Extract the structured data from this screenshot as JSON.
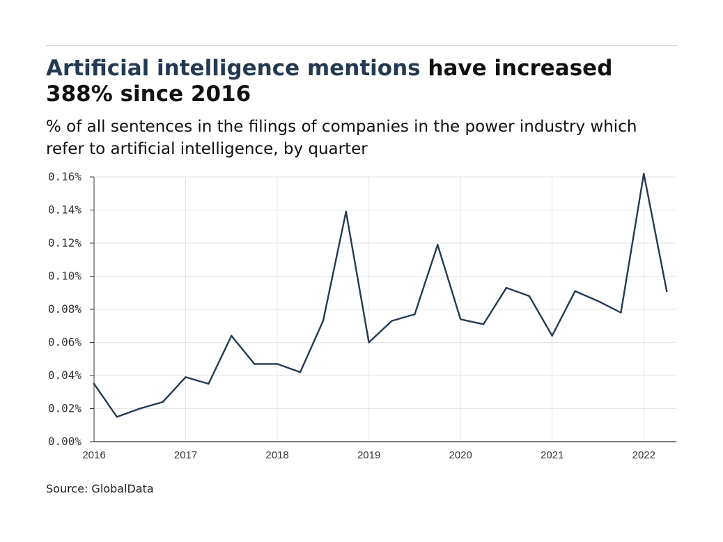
{
  "header": {
    "title_accent": "Artificial intelligence mentions",
    "title_rest": " have increased 388% since 2016",
    "subtitle": "% of all sentences in the filings of companies in the power industry which refer to artificial intelligence, by quarter"
  },
  "footer": {
    "source": "Source: GlobalData"
  },
  "colors": {
    "line": "#243a52",
    "grid": "#e6e6e6",
    "axis": "#333333",
    "title_accent": "#243a52"
  },
  "chart_data": {
    "type": "line",
    "title": "Artificial intelligence mentions have increased 388% since 2016",
    "subtitle": "% of all sentences in the filings of companies in the power industry which refer to artificial intelligence, by quarter",
    "xlabel": "",
    "ylabel": "",
    "x_ticks": [
      "2016",
      "2017",
      "2018",
      "2019",
      "2020",
      "2021",
      "2022"
    ],
    "y_ticks": [
      "0.00%",
      "0.02%",
      "0.04%",
      "0.06%",
      "0.08%",
      "0.10%",
      "0.12%",
      "0.14%",
      "0.16%"
    ],
    "xlim": [
      2016,
      2022.25
    ],
    "ylim": [
      0,
      0.16
    ],
    "grid": true,
    "series": [
      {
        "x": [
          2016,
          2016.25,
          2016.5,
          2016.75,
          2017,
          2017.25,
          2017.5,
          2017.75,
          2018,
          2018.25,
          2018.5,
          2018.75,
          2019,
          2019.25,
          2019.5,
          2019.75,
          2020,
          2020.25,
          2020.5,
          2020.75,
          2021,
          2021.25,
          2021.5,
          2021.75,
          2022,
          2022.25
        ],
        "values": [
          0.035,
          0.015,
          0.02,
          0.024,
          0.039,
          0.035,
          0.064,
          0.047,
          0.047,
          0.042,
          0.073,
          0.139,
          0.06,
          0.073,
          0.077,
          0.119,
          0.074,
          0.071,
          0.093,
          0.088,
          0.064,
          0.091,
          0.085,
          0.078,
          0.162,
          0.091
        ]
      }
    ]
  }
}
